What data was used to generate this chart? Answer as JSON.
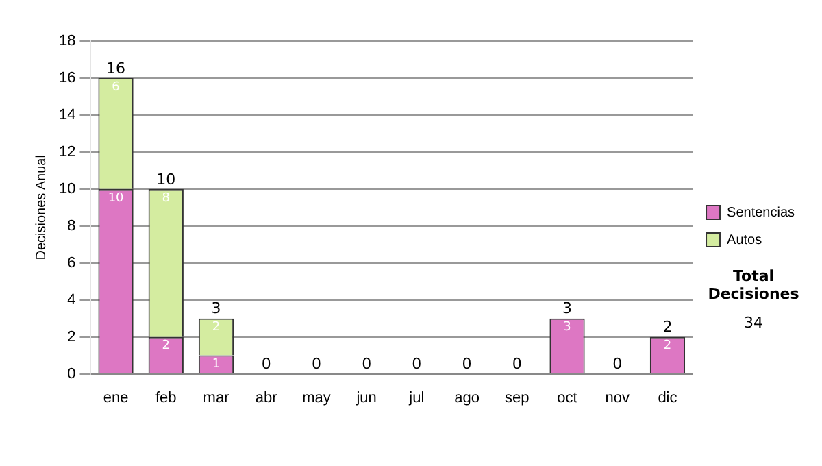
{
  "chart_data": {
    "type": "bar",
    "stacked": true,
    "ylabel": "Decisiones Anual",
    "categories": [
      "ene",
      "feb",
      "mar",
      "abr",
      "may",
      "jun",
      "jul",
      "ago",
      "sep",
      "oct",
      "nov",
      "dic"
    ],
    "series": [
      {
        "name": "Sentencias",
        "color": "#dd77c3",
        "values": [
          10,
          2,
          1,
          0,
          0,
          0,
          0,
          0,
          0,
          3,
          0,
          2
        ],
        "value_labels": [
          "10",
          "2",
          "1",
          null,
          null,
          null,
          null,
          null,
          null,
          "3",
          null,
          "2"
        ]
      },
      {
        "name": "Autos",
        "color": "#d4eca0",
        "values": [
          6,
          8,
          2,
          0,
          0,
          0,
          0,
          0,
          0,
          0,
          0,
          0
        ],
        "value_labels": [
          "6",
          "8",
          "2",
          null,
          null,
          null,
          null,
          null,
          null,
          null,
          null,
          null
        ]
      }
    ],
    "totals": [
      "16",
      "10",
      "3",
      "0",
      "0",
      "0",
      "0",
      "0",
      "0",
      "3",
      "0",
      "2"
    ],
    "ylim": [
      0,
      18
    ],
    "yticks": [
      0,
      2,
      4,
      6,
      8,
      10,
      12,
      14,
      16,
      18
    ],
    "grid": "y",
    "legend": "right",
    "annotations": [
      "Total Decisiones",
      "34"
    ]
  }
}
